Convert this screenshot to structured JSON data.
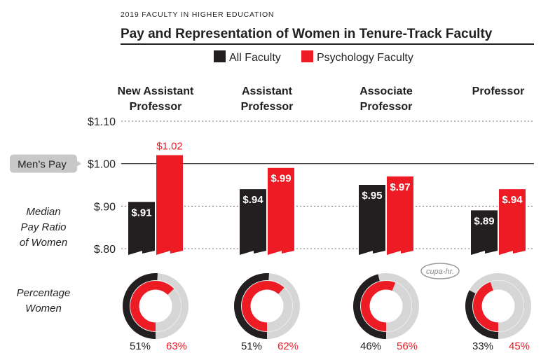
{
  "chart_data": {
    "type": "bar",
    "supertitle": "2019 FACULTY IN HIGHER EDUCATION",
    "title": "Pay and Representation of Women in Tenure-Track Faculty",
    "legend": [
      {
        "name": "All Faculty",
        "color": "#231f20"
      },
      {
        "name": "Psychology Faculty",
        "color": "#ed1c24"
      }
    ],
    "legend_position": "top",
    "categories": [
      [
        "New Assistant",
        "Professor"
      ],
      [
        "Assistant",
        "Professor"
      ],
      [
        "Associate",
        "Professor"
      ],
      [
        "Professor"
      ]
    ],
    "ylabel": [
      "Median",
      "Pay Ratio",
      "of Women"
    ],
    "ylim": [
      0.8,
      1.1
    ],
    "yticks": [
      1.1,
      1.0,
      0.9,
      0.8
    ],
    "ytick_labels": [
      "$1.10",
      "$1.00",
      "$.90",
      "$.80"
    ],
    "reference_line": {
      "value": 1.0,
      "label": "Men’s Pay"
    },
    "series": [
      {
        "name": "All Faculty",
        "values": [
          0.91,
          0.94,
          0.95,
          0.89
        ],
        "labels": [
          "$.91",
          "$.94",
          "$.95",
          "$.89"
        ]
      },
      {
        "name": "Psychology Faculty",
        "values": [
          1.02,
          0.99,
          0.97,
          0.94
        ],
        "labels": [
          "$1.02",
          "$.99",
          "$.97",
          "$.94"
        ]
      }
    ],
    "percentage_women": {
      "label": [
        "Percentage",
        "Women"
      ],
      "all_faculty": [
        51,
        51,
        46,
        33
      ],
      "psychology": [
        63,
        62,
        56,
        45
      ],
      "all_labels": [
        "51%",
        "51%",
        "46%",
        "33%"
      ],
      "psych_labels": [
        "63%",
        "62%",
        "56%",
        "45%"
      ]
    },
    "logo": "cupa-hr."
  }
}
